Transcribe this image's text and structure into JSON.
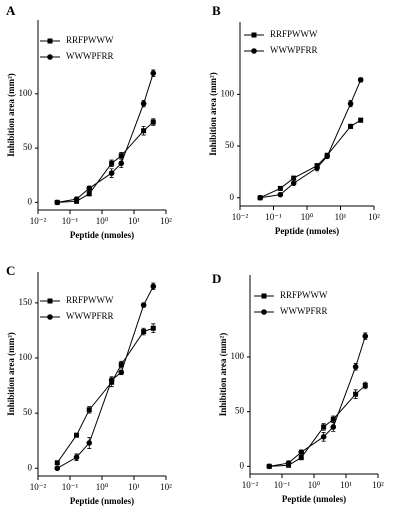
{
  "chart_data": [
    {
      "type": "line",
      "title": "A",
      "xlabel": "Peptide (nmoles)",
      "ylabel": "Inhibition area (mm²)",
      "x": [
        0.04,
        0.16,
        0.4,
        2,
        4,
        20,
        40
      ],
      "xscale": "log",
      "xlim": [
        0.01,
        100
      ],
      "xticks": [
        {
          "value": 0.01,
          "label": "10⁻²"
        },
        {
          "value": 0.1,
          "label": "10⁻¹"
        },
        {
          "value": 1,
          "label": "10⁰"
        },
        {
          "value": 10,
          "label": "10¹"
        },
        {
          "value": 100,
          "label": "10²"
        }
      ],
      "ylim": [
        -7,
        168
      ],
      "yticks": [
        0,
        50,
        100
      ],
      "legend": "upper left",
      "series": [
        {
          "name": "RRFPWWW",
          "color": "#000000",
          "marker": "square",
          "values": [
            0,
            1,
            8,
            36,
            43,
            66,
            74
          ],
          "errors": [
            1,
            1,
            2,
            3,
            3,
            4,
            3
          ]
        },
        {
          "name": "WWWPFRR",
          "color": "#000000",
          "marker": "circle",
          "values": [
            0,
            3,
            13,
            27,
            36,
            91,
            119
          ],
          "errors": [
            1,
            2,
            2,
            4,
            4,
            3,
            3
          ]
        }
      ]
    },
    {
      "type": "line",
      "title": "B",
      "xlabel": "Peptide (nmoles)",
      "ylabel": "Inhibition area (mm²)",
      "x": [
        0.04,
        0.16,
        0.4,
        2,
        4,
        20,
        40
      ],
      "xscale": "log",
      "xlim": [
        0.01,
        100
      ],
      "xticks": [
        {
          "value": 0.01,
          "label": "10⁻²"
        },
        {
          "value": 0.1,
          "label": "10⁻¹"
        },
        {
          "value": 1,
          "label": "10⁰"
        },
        {
          "value": 10,
          "label": "10¹"
        },
        {
          "value": 100,
          "label": "10²"
        }
      ],
      "ylim": [
        -8,
        170
      ],
      "yticks": [
        0,
        50,
        100
      ],
      "legend": "upper left",
      "series": [
        {
          "name": "RRFPWWW",
          "color": "#000000",
          "marker": "square",
          "values": [
            0,
            9,
            19,
            31,
            41,
            69,
            75
          ],
          "errors": [
            1,
            1,
            1,
            2,
            2,
            2,
            2
          ]
        },
        {
          "name": "WWWPFRR",
          "color": "#000000",
          "marker": "circle",
          "values": [
            0,
            3,
            14,
            29,
            40,
            91,
            114
          ],
          "errors": [
            1,
            1,
            1,
            3,
            2,
            3,
            2
          ]
        }
      ]
    },
    {
      "type": "line",
      "title": "C",
      "xlabel": "Peptide (nmoles)",
      "ylabel": "Inhibition area (mm²)",
      "x": [
        0.04,
        0.16,
        0.4,
        2,
        4,
        20,
        40
      ],
      "xscale": "log",
      "xlim": [
        0.01,
        100
      ],
      "xticks": [
        {
          "value": 0.01,
          "label": "10⁻²"
        },
        {
          "value": 0.1,
          "label": "10⁻¹"
        },
        {
          "value": 1,
          "label": "10⁰"
        },
        {
          "value": 10,
          "label": "10¹"
        },
        {
          "value": 100,
          "label": "10²"
        }
      ],
      "ylim": [
        -7,
        178
      ],
      "yticks": [
        0,
        50,
        100,
        150
      ],
      "legend": "upper left",
      "series": [
        {
          "name": "RRFPWWW",
          "color": "#000000",
          "marker": "square",
          "values": [
            5,
            30,
            53,
            78,
            94,
            124,
            127
          ],
          "errors": [
            1,
            1,
            3,
            4,
            3,
            3,
            4
          ]
        },
        {
          "name": "WWWPFRR",
          "color": "#000000",
          "marker": "circle",
          "values": [
            0,
            10,
            23,
            80,
            87,
            148,
            165
          ],
          "errors": [
            1,
            3,
            5,
            3,
            2,
            2,
            3
          ]
        }
      ]
    },
    {
      "type": "line",
      "title": "D",
      "xlabel": "Peptide (nmoles)",
      "ylabel": "Inhibition area (mm²)",
      "x": [
        0.04,
        0.16,
        0.4,
        2,
        4,
        20,
        40
      ],
      "xscale": "log",
      "xlim": [
        0.01,
        100
      ],
      "xticks": [
        {
          "value": 0.01,
          "label": "10⁻²"
        },
        {
          "value": 0.1,
          "label": "10⁻¹"
        },
        {
          "value": 1,
          "label": "10⁰"
        },
        {
          "value": 10,
          "label": "10¹"
        },
        {
          "value": 100,
          "label": "10²"
        }
      ],
      "ylim": [
        -7,
        175
      ],
      "yticks": [
        0,
        50,
        100
      ],
      "legend": "upper left",
      "series": [
        {
          "name": "RRFPWWW",
          "color": "#000000",
          "marker": "square",
          "values": [
            0,
            1,
            8,
            36,
            43,
            66,
            74
          ],
          "errors": [
            1,
            1,
            2,
            3,
            3,
            4,
            3
          ]
        },
        {
          "name": "WWWPFRR",
          "color": "#000000",
          "marker": "circle",
          "values": [
            0,
            3,
            13,
            27,
            36,
            91,
            119
          ],
          "errors": [
            1,
            2,
            2,
            4,
            4,
            3,
            3
          ]
        }
      ]
    }
  ]
}
